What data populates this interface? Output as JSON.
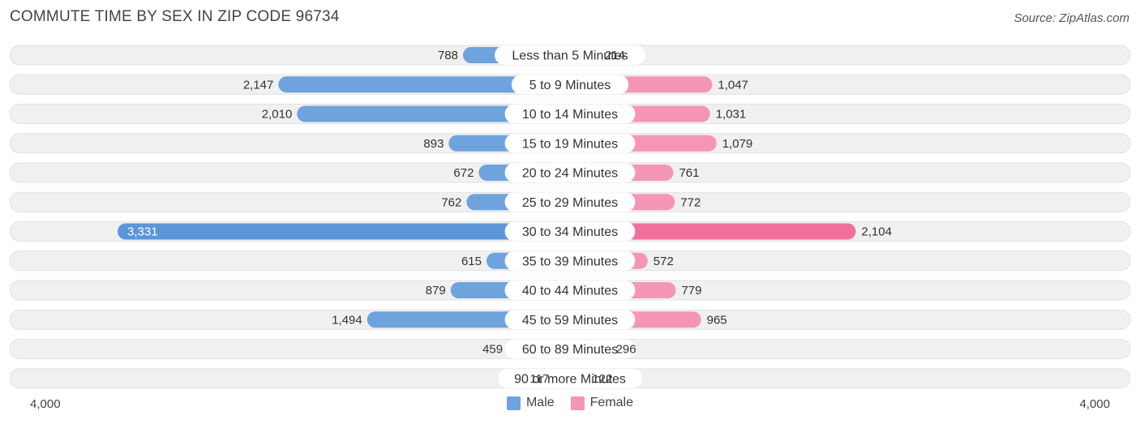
{
  "header": {
    "title": "COMMUTE TIME BY SEX IN ZIP CODE 96734",
    "source": "Source: ZipAtlas.com"
  },
  "axis": {
    "left_label": "4,000",
    "right_label": "4,000"
  },
  "legend": {
    "male": "Male",
    "female": "Female"
  },
  "colors": {
    "male": "#6fa3dd",
    "male_strong": "#5b96da",
    "female": "#f596b4",
    "female_strong": "#f0709a",
    "row_bg": "#f0f0f0",
    "row_border": "#e2e2e2"
  },
  "chart_data": {
    "type": "bar",
    "orientation": "horizontal-diverging",
    "title": "COMMUTE TIME BY SEX IN ZIP CODE 96734",
    "xlim": [
      -4000,
      4000
    ],
    "categories": [
      "Less than 5 Minutes",
      "5 to 9 Minutes",
      "10 to 14 Minutes",
      "15 to 19 Minutes",
      "20 to 24 Minutes",
      "25 to 29 Minutes",
      "30 to 34 Minutes",
      "35 to 39 Minutes",
      "40 to 44 Minutes",
      "45 to 59 Minutes",
      "60 to 89 Minutes",
      "90 or more Minutes"
    ],
    "series": [
      {
        "name": "Male",
        "values": [
          788,
          2147,
          2010,
          893,
          672,
          762,
          3331,
          615,
          879,
          1494,
          459,
          117
        ],
        "labels": [
          "788",
          "2,147",
          "2,010",
          "893",
          "672",
          "762",
          "3,331",
          "615",
          "879",
          "1,494",
          "459",
          "117"
        ]
      },
      {
        "name": "Female",
        "values": [
          214,
          1047,
          1031,
          1079,
          761,
          772,
          2104,
          572,
          779,
          965,
          296,
          122
        ],
        "labels": [
          "214",
          "1,047",
          "1,031",
          "1,079",
          "761",
          "772",
          "2,104",
          "572",
          "779",
          "965",
          "296",
          "122"
        ]
      }
    ],
    "legend_position": "bottom-center",
    "grid": false
  }
}
